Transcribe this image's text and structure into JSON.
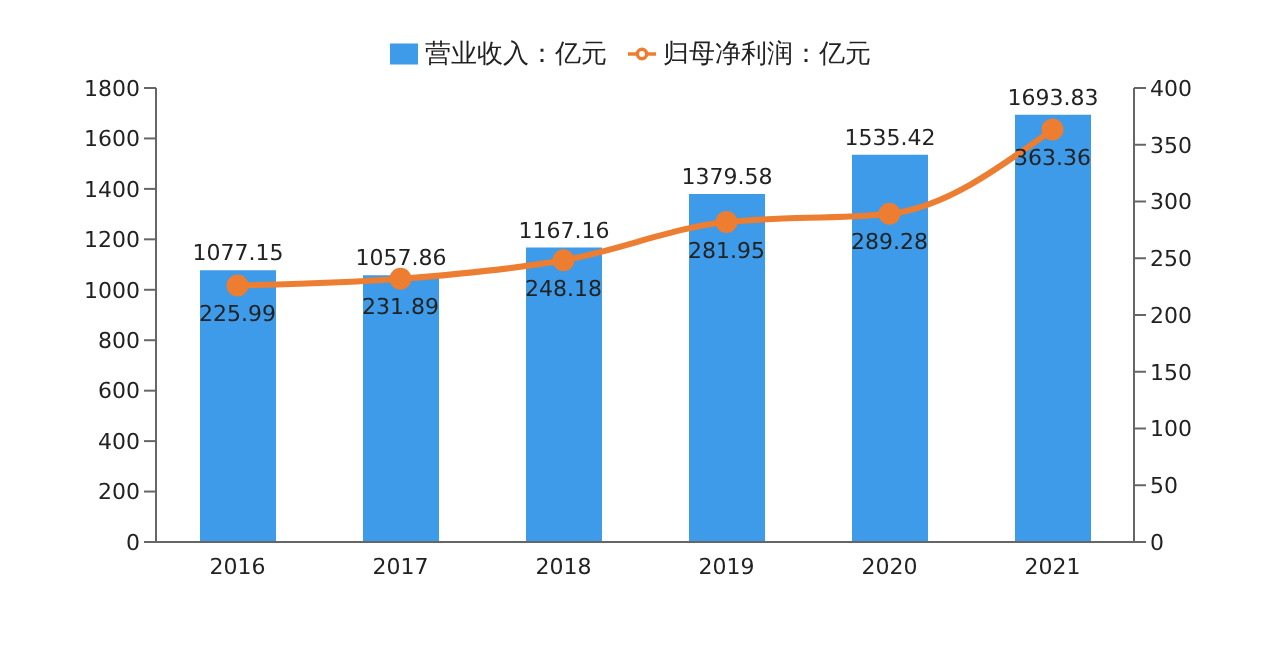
{
  "chart_data": {
    "type": "bar",
    "categories": [
      "2016",
      "2017",
      "2018",
      "2019",
      "2020",
      "2021"
    ],
    "series": [
      {
        "name": "营业收入：亿元",
        "color": "#3d9be9",
        "values": [
          1077.15,
          1057.86,
          1167.16,
          1379.58,
          1535.42,
          1693.83
        ]
      },
      {
        "name": "归母净利润：亿元",
        "type": "line",
        "axis": "y2",
        "color": "#ed7d31",
        "marker": "circle",
        "values": [
          225.99,
          231.89,
          248.18,
          281.95,
          289.28,
          363.36
        ]
      }
    ],
    "ylim": [
      0,
      1800
    ],
    "yticks": [
      0,
      200,
      400,
      600,
      800,
      1000,
      1200,
      1400,
      1600,
      1800
    ],
    "y2lim": [
      0,
      400
    ],
    "y2ticks": [
      0,
      50,
      100,
      150,
      200,
      250,
      300,
      350,
      400
    ],
    "data_labels": true,
    "legend": "top",
    "grid": false
  }
}
